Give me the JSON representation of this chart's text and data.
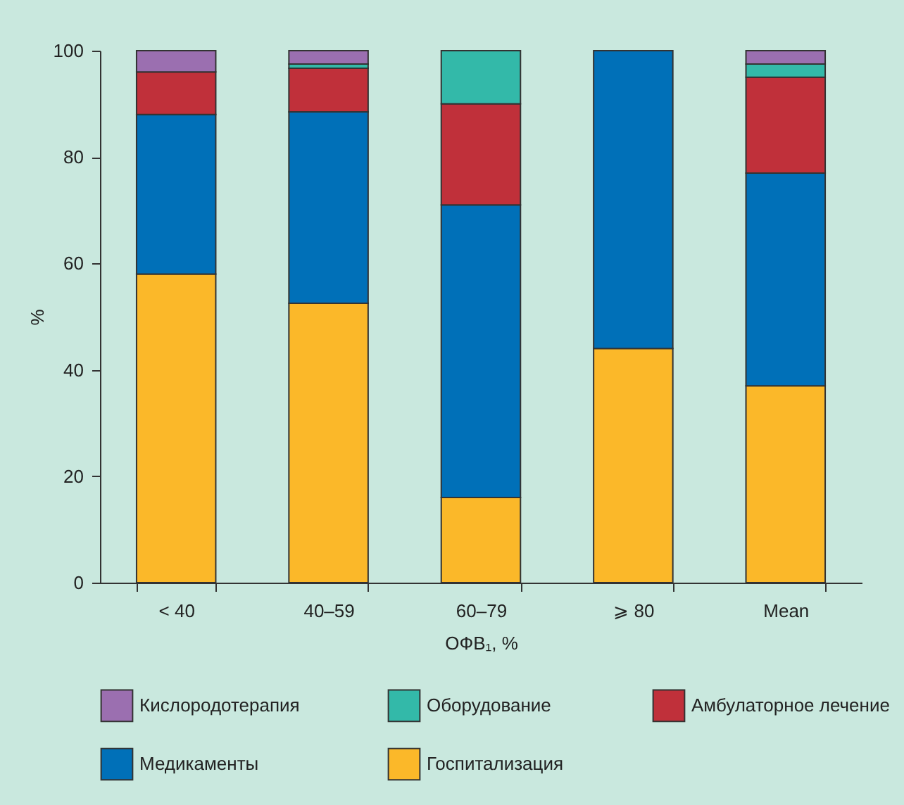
{
  "chart_data": {
    "type": "bar",
    "stacked": true,
    "xlabel": "ОФВ₁, %",
    "ylabel": "%",
    "categories": [
      "< 40",
      "40–59",
      "60–79",
      "⩾ 80",
      "Mean"
    ],
    "series": [
      {
        "name": "Госпитализация",
        "color": "#fbb829",
        "values": [
          58,
          52.5,
          16,
          44,
          37
        ]
      },
      {
        "name": "Медикаменты",
        "color": "#0070b8",
        "values": [
          30,
          36,
          55,
          56,
          40
        ]
      },
      {
        "name": "Амбулаторное лечение",
        "color": "#c0303a",
        "values": [
          8,
          8.2,
          19,
          null,
          18
        ]
      },
      {
        "name": "Оборудование",
        "color": "#33b9a9",
        "values": [
          null,
          0.8,
          10,
          null,
          2.5
        ]
      },
      {
        "name": "Кислородотерапия",
        "color": "#9b6fb0",
        "values": [
          4,
          2.5,
          null,
          null,
          2.5
        ]
      }
    ],
    "ylim": [
      0,
      100
    ],
    "yticks": [
      0,
      20,
      40,
      60,
      80,
      100
    ],
    "grid": false,
    "legend": "bottom"
  }
}
